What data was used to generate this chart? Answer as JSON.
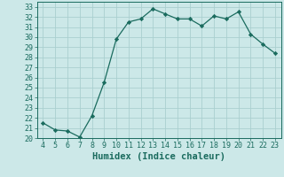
{
  "x": [
    4,
    5,
    6,
    7,
    8,
    9,
    10,
    11,
    12,
    13,
    14,
    15,
    16,
    17,
    18,
    19,
    20,
    21,
    22,
    23
  ],
  "y": [
    21.5,
    20.8,
    20.7,
    20.1,
    22.2,
    25.5,
    29.8,
    31.5,
    31.8,
    32.8,
    32.3,
    31.8,
    31.8,
    31.1,
    32.1,
    31.8,
    32.5,
    30.3,
    29.3,
    28.4
  ],
  "line_color": "#1a6b5e",
  "marker": "D",
  "marker_size": 2.2,
  "bg_color": "#cce8e8",
  "grid_color": "#aacfcf",
  "xlabel": "Humidex (Indice chaleur)",
  "xlim": [
    3.5,
    23.5
  ],
  "ylim": [
    20,
    33.5
  ],
  "yticks": [
    20,
    21,
    22,
    23,
    24,
    25,
    26,
    27,
    28,
    29,
    30,
    31,
    32,
    33
  ],
  "xticks": [
    4,
    5,
    6,
    7,
    8,
    9,
    10,
    11,
    12,
    13,
    14,
    15,
    16,
    17,
    18,
    19,
    20,
    21,
    22,
    23
  ],
  "tick_color": "#1a6b5e",
  "label_fontsize": 6.0,
  "xlabel_fontsize": 7.5
}
